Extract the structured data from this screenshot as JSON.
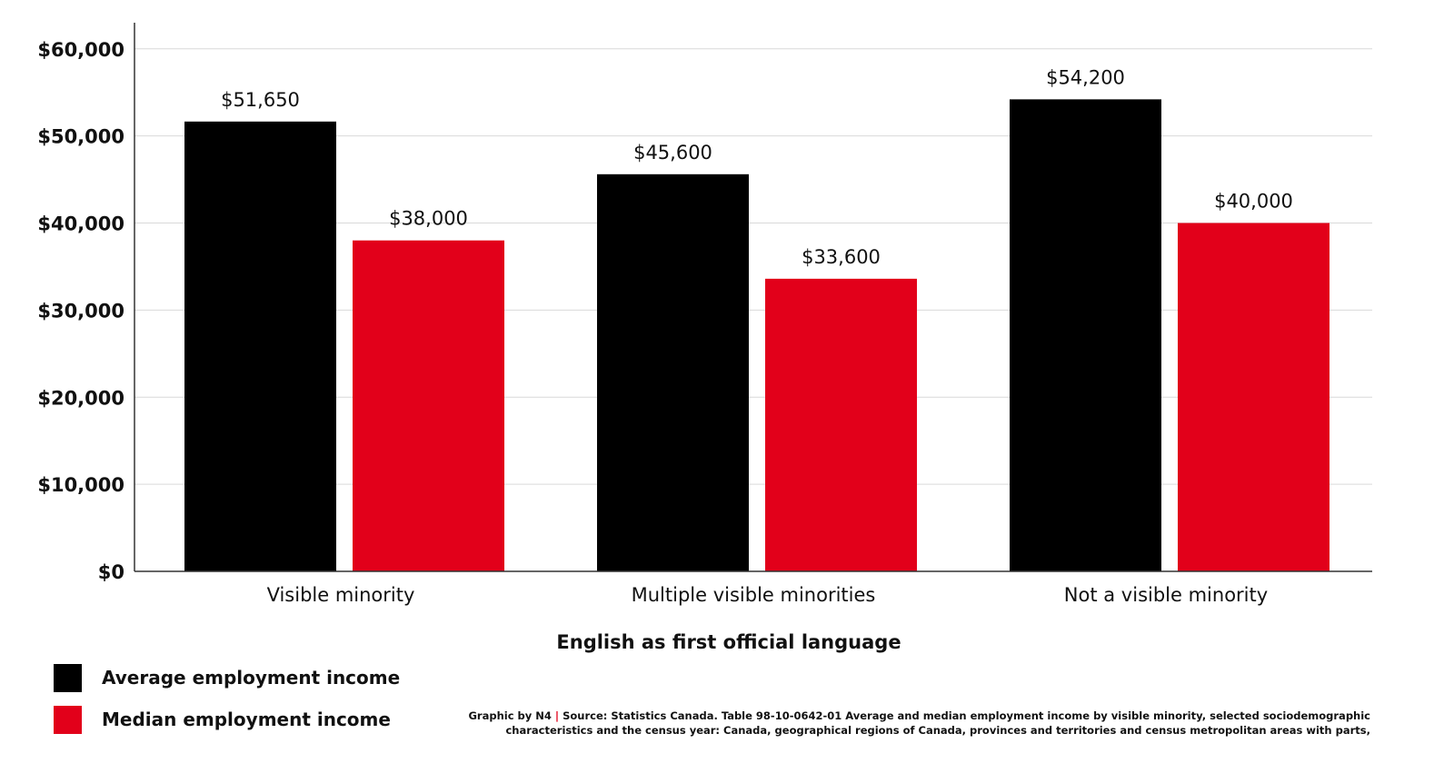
{
  "colors": {
    "average": "#000000",
    "median": "#e2001a",
    "grid": "#d9d9d9",
    "axis": "#333333",
    "separator": "#e2001a"
  },
  "chart_data": {
    "type": "bar",
    "categories": [
      "Visible minority",
      "Multiple visible minorities",
      "Not a visible minority"
    ],
    "series": [
      {
        "name": "Average employment income",
        "values": [
          51650,
          45600,
          54200
        ],
        "labels": [
          "$51,650",
          "$45,600",
          "$54,200"
        ]
      },
      {
        "name": "Median employment income",
        "values": [
          38000,
          33600,
          40000
        ],
        "labels": [
          "$38,000",
          "$33,600",
          "$40,000"
        ]
      }
    ],
    "xlabel": "English as first official language",
    "ylabel": "",
    "ylim": [
      0,
      63000
    ],
    "yticks": [
      0,
      10000,
      20000,
      30000,
      40000,
      50000,
      60000
    ],
    "ytick_labels": [
      "$0",
      "$10,000",
      "$20,000",
      "$30,000",
      "$40,000",
      "$50,000",
      "$60,000"
    ],
    "grid": true,
    "legend_position": "bottom-left"
  },
  "legend": {
    "average_label": "Average employment income",
    "median_label": "Median employment income"
  },
  "source": {
    "credit": "Graphic by N4",
    "separator": "|",
    "line1": "Source: Statistics Canada. Table 98-10-0642-01  Average and median employment income by visible minority, selected sociodemographic",
    "line2": "characteristics and the census year: Canada, geographical regions of Canada, provinces and territories and census metropolitan areas with parts,"
  }
}
